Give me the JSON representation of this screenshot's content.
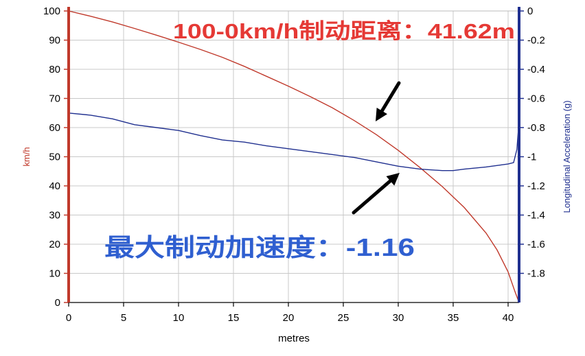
{
  "chart_data": {
    "type": "line",
    "xlabel": "metres",
    "ylabel_left": "km/h",
    "ylabel_right": "Longitudinal Acceleration (g)",
    "xlim": [
      0,
      41
    ],
    "ylim_left": [
      0,
      100
    ],
    "ylim_right": [
      -2,
      0
    ],
    "x_ticks": [
      "0",
      "5",
      "10",
      "15",
      "20",
      "25",
      "30",
      "35",
      "40"
    ],
    "y_left_ticks": [
      "0",
      "10",
      "20",
      "30",
      "40",
      "50",
      "60",
      "70",
      "80",
      "90",
      "100"
    ],
    "y_right_ticks": [
      "0",
      "-0.2",
      "-0.4",
      "-0.6",
      "-0.8",
      "-1",
      "-1.2",
      "-1.4",
      "-1.6",
      "-1.8"
    ],
    "grid": true,
    "series": [
      {
        "axis": "left",
        "color": "#c0392b",
        "points": [
          [
            0,
            100
          ],
          [
            2,
            98.2
          ],
          [
            4,
            96.2
          ],
          [
            6,
            94
          ],
          [
            8,
            91.7
          ],
          [
            10,
            89.3
          ],
          [
            12,
            86.8
          ],
          [
            14,
            84.1
          ],
          [
            16,
            81
          ],
          [
            18,
            77.6
          ],
          [
            20,
            74.2
          ],
          [
            22,
            70.6
          ],
          [
            24,
            66.8
          ],
          [
            26,
            62.4
          ],
          [
            28,
            57.6
          ],
          [
            30,
            52.2
          ],
          [
            32,
            46.2
          ],
          [
            34,
            39.8
          ],
          [
            36,
            32.6
          ],
          [
            38,
            23.8
          ],
          [
            39,
            18
          ],
          [
            40,
            10.5
          ],
          [
            40.6,
            4
          ],
          [
            41,
            0
          ]
        ]
      },
      {
        "axis": "right",
        "color": "#1f2f8f",
        "points": [
          [
            0,
            -0.7
          ],
          [
            2,
            -0.715
          ],
          [
            4,
            -0.74
          ],
          [
            6,
            -0.78
          ],
          [
            8,
            -0.8
          ],
          [
            10,
            -0.82
          ],
          [
            12,
            -0.855
          ],
          [
            14,
            -0.885
          ],
          [
            16,
            -0.9
          ],
          [
            18,
            -0.925
          ],
          [
            20,
            -0.945
          ],
          [
            22,
            -0.965
          ],
          [
            24,
            -0.985
          ],
          [
            26,
            -1.005
          ],
          [
            28,
            -1.035
          ],
          [
            30,
            -1.065
          ],
          [
            32,
            -1.085
          ],
          [
            34,
            -1.095
          ],
          [
            35,
            -1.095
          ],
          [
            36,
            -1.085
          ],
          [
            38,
            -1.07
          ],
          [
            40,
            -1.05
          ],
          [
            40.5,
            -1.04
          ],
          [
            40.8,
            -0.95
          ],
          [
            41,
            -0.75
          ]
        ]
      }
    ],
    "annotations": [
      {
        "text": "100-0km/h制动距离：41.62m",
        "color": "#e53935"
      },
      {
        "text": "最大制动加速度：-1.16",
        "color": "#2f5fd0"
      }
    ]
  }
}
